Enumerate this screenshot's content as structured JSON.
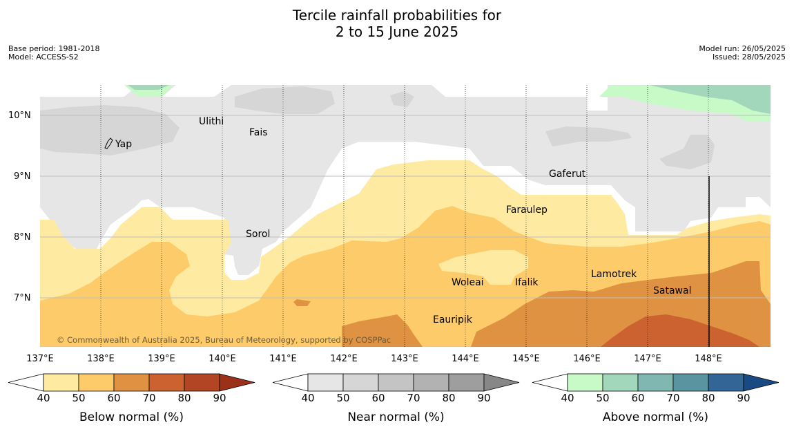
{
  "title": {
    "line1": "Tercile rainfall probabilities for",
    "line2": "2 to 15 June 2025"
  },
  "meta_left": {
    "base_period": "Base period: 1981-2018",
    "model": "Model: ACCESS-S2"
  },
  "meta_right": {
    "model_run": "Model run: 26/05/2025",
    "issued": "Issued: 28/05/2025"
  },
  "map": {
    "lon_range": [
      137,
      149
    ],
    "lat_range": [
      6.3,
      10.5
    ],
    "lon_ticks": [
      "137°E",
      "138°E",
      "139°E",
      "140°E",
      "141°E",
      "142°E",
      "143°E",
      "144°E",
      "145°E",
      "146°E",
      "147°E",
      "148°E"
    ],
    "lat_ticks": [
      "10°N",
      "9°N",
      "8°N",
      "7°N"
    ],
    "places": [
      {
        "name": "Ulithi",
        "lon": 139.75,
        "lat": 9.96
      },
      {
        "name": "Fais",
        "lon": 140.45,
        "lat": 9.76
      },
      {
        "name": "Yap",
        "lon": 138.15,
        "lat": 9.52
      },
      {
        "name": "Gaferut",
        "lon": 145.4,
        "lat": 9.1
      },
      {
        "name": "Faraulep",
        "lon": 144.6,
        "lat": 8.5
      },
      {
        "name": "Sorol",
        "lon": 140.4,
        "lat": 8.1
      },
      {
        "name": "Lamotrek",
        "lon": 146.1,
        "lat": 7.45
      },
      {
        "name": "Woleai",
        "lon": 143.9,
        "lat": 7.35
      },
      {
        "name": "Ifalik",
        "lon": 144.4,
        "lat": 7.25
      },
      {
        "name": "Satawal",
        "lon": 147.1,
        "lat": 7.25
      },
      {
        "name": "Eauripik",
        "lon": 143.45,
        "lat": 6.7
      }
    ],
    "copyright": "© Commonwealth of Australia 2025, Bureau of Meteorology, supported by COSPPac"
  },
  "colorbars": [
    {
      "name": "Below normal (%)",
      "ticks": [
        "40",
        "50",
        "60",
        "70",
        "80",
        "90"
      ],
      "colors": [
        "#ffffff",
        "#feeaa1",
        "#fdcb69",
        "#e09243",
        "#cd6231",
        "#b24523",
        "#9b3119"
      ]
    },
    {
      "name": "Near normal (%)",
      "ticks": [
        "40",
        "50",
        "60",
        "70",
        "80",
        "90"
      ],
      "colors": [
        "#ffffff",
        "#e6e6e6",
        "#d6d6d6",
        "#c4c4c4",
        "#b2b2b2",
        "#9e9e9e",
        "#878787"
      ]
    },
    {
      "name": "Above normal (%)",
      "ticks": [
        "40",
        "50",
        "60",
        "70",
        "80",
        "90"
      ],
      "colors": [
        "#ffffff",
        "#c8fac8",
        "#a3d7bb",
        "#80b7b0",
        "#5a94a0",
        "#346597",
        "#1a4a84"
      ]
    }
  ]
}
